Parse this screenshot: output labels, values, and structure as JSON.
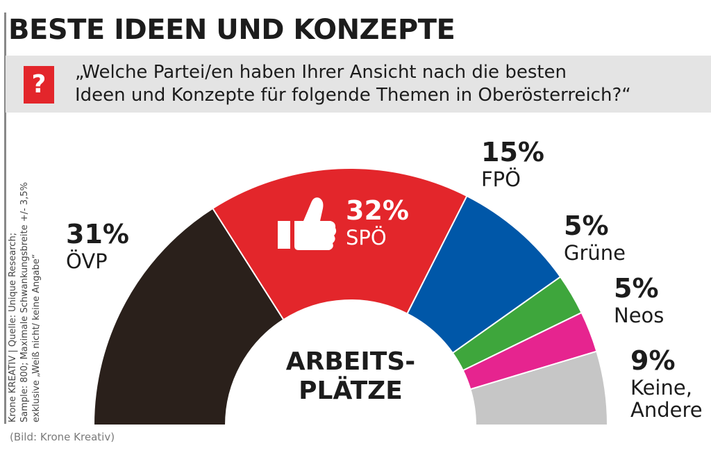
{
  "header": {
    "title": "BESTE IDEEN UND KONZEPTE",
    "question_mark": "?",
    "question_line1": "„Welche Partei/en haben Ihrer Ansicht nach die besten",
    "question_line2": "Ideen und Konzepte für folgende Themen in Oberösterreich?“"
  },
  "source": {
    "line1": "Krone KREATIV | Quelle: Unique Research;",
    "line2": "Sample: 800; Maximale Schwankungsbreite +/- 3,5%",
    "line3": "exklusive „Weiß nicht/ keine Angabe“"
  },
  "caption": "(Bild: Krone Kreativ)",
  "colors": {
    "accent_red": "#e3262b",
    "question_bar": "#e4e4e4"
  },
  "chart_data": {
    "type": "pie",
    "subtype": "semicircle-donut",
    "center_label": [
      "ARBEITS-",
      "PLÄTZE"
    ],
    "unit": "%",
    "highlight_icon": "thumbs-up-icon",
    "slices": [
      {
        "label": "ÖVP",
        "value": 31,
        "value_label": "31%",
        "color": "#2a201b"
      },
      {
        "label": "SPÖ",
        "value": 32,
        "value_label": "32%",
        "color": "#e3262b"
      },
      {
        "label": "FPÖ",
        "value": 15,
        "value_label": "15%",
        "color": "#0057a8"
      },
      {
        "label": "Grüne",
        "value": 5,
        "value_label": "5%",
        "color": "#3ea63c"
      },
      {
        "label": "Neos",
        "value": 5,
        "value_label": "5%",
        "color": "#e6248f"
      },
      {
        "label_lines": [
          "Keine,",
          "Andere"
        ],
        "value": 9,
        "value_label": "9%",
        "color": "#c6c6c6"
      }
    ]
  }
}
